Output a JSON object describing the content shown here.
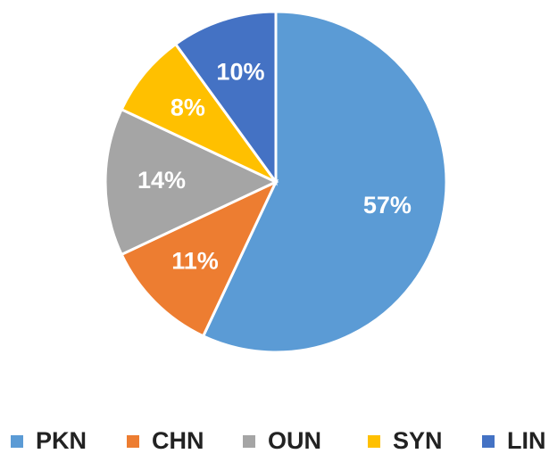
{
  "chart_data": {
    "type": "pie",
    "categories": [
      "PKN",
      "CHN",
      "OUN",
      "SYN",
      "LIN"
    ],
    "values": [
      57,
      11,
      14,
      8,
      10
    ],
    "value_labels": [
      "57%",
      "11%",
      "14%",
      "8%",
      "10%"
    ],
    "colors": [
      "#5b9bd5",
      "#ed7d31",
      "#a5a5a5",
      "#ffc000",
      "#4472c4"
    ],
    "legend": "bottom"
  }
}
